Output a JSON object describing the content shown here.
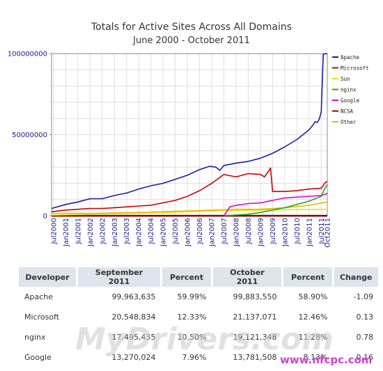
{
  "chart_data": {
    "type": "line",
    "title": "Totals for Active Sites Across All Domains",
    "subtitle": "June 2000 - October 2011",
    "x_ticks": [
      "Jul2000",
      "Jan2001",
      "Jul2001",
      "Jan2002",
      "Jul2002",
      "Jan2003",
      "Jul2003",
      "Jan2004",
      "Jul2004",
      "Jan2005",
      "Jul2005",
      "Jan2006",
      "Jul2006",
      "Jan2007",
      "Jul2007",
      "Jan2008",
      "Jul2008",
      "Jan2009",
      "Jul2009",
      "Jan2010",
      "Jul2010",
      "Jan2011",
      "Jul2011",
      "Oct2011"
    ],
    "y_ticks": [
      "0",
      "50000000",
      "100000000"
    ],
    "ylim": [
      0,
      100000000
    ],
    "grid": true,
    "legend_position": "right",
    "series": [
      {
        "name": "Apache",
        "color": "#1a1aa6",
        "x": [
          "2000-06",
          "2001-01",
          "2001-07",
          "2002-01",
          "2002-07",
          "2003-01",
          "2003-07",
          "2004-01",
          "2004-07",
          "2005-01",
          "2005-07",
          "2006-01",
          "2006-07",
          "2006-12",
          "2007-03",
          "2007-05",
          "2007-07",
          "2008-01",
          "2008-07",
          "2009-01",
          "2009-07",
          "2010-01",
          "2010-07",
          "2011-01",
          "2011-03",
          "2011-04",
          "2011-05",
          "2011-06",
          "2011-07",
          "2011-08",
          "2011-09",
          "2011-10"
        ],
        "y": [
          4500000,
          7000000,
          8500000,
          10500000,
          10500000,
          12500000,
          14000000,
          16500000,
          18500000,
          20000000,
          22500000,
          25000000,
          28500000,
          30500000,
          30000000,
          28000000,
          31000000,
          32500000,
          33500000,
          35500000,
          38500000,
          42500000,
          47000000,
          53000000,
          56000000,
          58000000,
          57500000,
          59500000,
          64000000,
          99500000,
          99963635,
          99883550
        ]
      },
      {
        "name": "Microsoft",
        "color": "#cc0000",
        "x": [
          "2000-06",
          "2001-01",
          "2001-07",
          "2002-01",
          "2002-07",
          "2003-01",
          "2003-07",
          "2004-01",
          "2004-07",
          "2005-01",
          "2005-07",
          "2006-01",
          "2006-07",
          "2007-01",
          "2007-07",
          "2008-01",
          "2008-07",
          "2009-01",
          "2009-03",
          "2009-05",
          "2009-06",
          "2009-07",
          "2010-01",
          "2010-07",
          "2011-01",
          "2011-07",
          "2011-09",
          "2011-10"
        ],
        "y": [
          2500000,
          3500000,
          4000000,
          4500000,
          4500000,
          5000000,
          5500000,
          6000000,
          6500000,
          8000000,
          9500000,
          12000000,
          15500000,
          20000000,
          25500000,
          24000000,
          26000000,
          25500000,
          24000000,
          27500000,
          29500000,
          15000000,
          15000000,
          15500000,
          16500000,
          17000000,
          20548834,
          21137071
        ]
      },
      {
        "name": "Sun",
        "color": "#e6e600",
        "x": [
          "2000-06",
          "2002-01",
          "2004-01",
          "2006-01",
          "2007-07",
          "2009-01",
          "2011-10"
        ],
        "y": [
          400000,
          1000000,
          1500000,
          2500000,
          3000000,
          3500000,
          4000000
        ]
      },
      {
        "name": "nginx",
        "color": "#22aa22",
        "x": [
          "2007-07",
          "2008-07",
          "2009-01",
          "2009-07",
          "2010-01",
          "2010-07",
          "2011-01",
          "2011-07",
          "2011-09",
          "2011-10"
        ],
        "y": [
          0,
          1000000,
          2000000,
          3500000,
          5000000,
          7000000,
          9000000,
          12000000,
          17495435,
          19121348
        ]
      },
      {
        "name": "Google",
        "color": "#dd00dd",
        "x": [
          "2007-07",
          "2007-10",
          "2008-01",
          "2008-07",
          "2009-01",
          "2009-07",
          "2010-01",
          "2010-07",
          "2011-01",
          "2011-07",
          "2011-09",
          "2011-10"
        ],
        "y": [
          0,
          5500000,
          6500000,
          7500000,
          8000000,
          9500000,
          11000000,
          11500000,
          12000000,
          12500000,
          13270024,
          13781508
        ]
      },
      {
        "name": "NCSA",
        "color": "#800000",
        "x": [
          "2000-06",
          "2003-01",
          "2006-01",
          "2009-01",
          "2011-10"
        ],
        "y": [
          0,
          0,
          0,
          0,
          0
        ]
      },
      {
        "name": "Other",
        "color": "#e6b800",
        "x": [
          "2000-06",
          "2002-01",
          "2004-01",
          "2006-01",
          "2008-01",
          "2009-01",
          "2010-01",
          "2011-01",
          "2011-10"
        ],
        "y": [
          1500000,
          1500000,
          2000000,
          3000000,
          4000000,
          4000000,
          5000000,
          6500000,
          8500000
        ]
      }
    ]
  },
  "table": {
    "headers": [
      "Developer",
      "September 2011",
      "Percent",
      "October 2011",
      "Percent",
      "Change"
    ],
    "rows": [
      [
        "Apache",
        "99,963,635",
        "59.99%",
        "99,883,550",
        "58.90%",
        "-1.09"
      ],
      [
        "Microsoft",
        "20,548,834",
        "12.33%",
        "21,137,071",
        "12.46%",
        "0.13"
      ],
      [
        "nginx",
        "17,495,435",
        "10.50%",
        "19,121,348",
        "11.28%",
        "0.78"
      ],
      [
        "Google",
        "13,270,024",
        "7.96%",
        "13,781,508",
        "8.13%",
        "0.16"
      ]
    ]
  },
  "watermark": {
    "text": "MyDrivers.com",
    "url_text": "www.nfcpc.com",
    "color": "#c9c9c9",
    "url_color": "#cc44cc"
  }
}
